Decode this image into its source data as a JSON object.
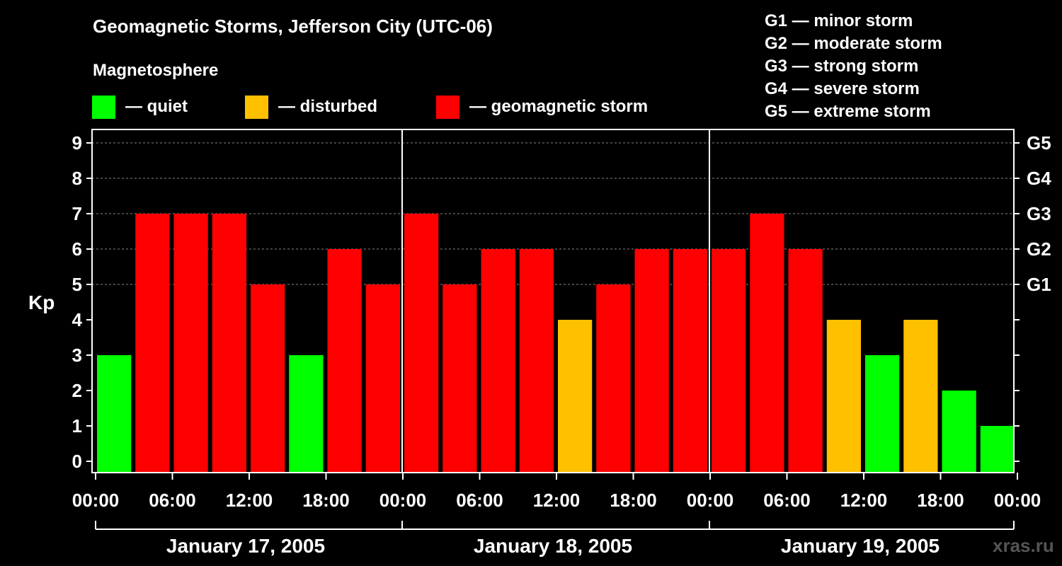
{
  "header": {
    "title": "Geomagnetic Storms, Jefferson City (UTC-06)",
    "magnetosphere_label": "Magnetosphere"
  },
  "legend": [
    {
      "label": "— quiet",
      "color": "#00ff00"
    },
    {
      "label": "— disturbed",
      "color": "#ffc000"
    },
    {
      "label": "— geomagnetic storm",
      "color": "#ff0000"
    }
  ],
  "storm_scale": [
    "G1 — minor storm",
    "G2 — moderate storm",
    "G3 — strong storm",
    "G4 — severe storm",
    "G5 — extreme storm"
  ],
  "watermark": "xras.ru",
  "chart_data": {
    "type": "bar",
    "title": "Geomagnetic Storms, Jefferson City (UTC-06)",
    "ylabel": "Kp",
    "ylim": [
      0,
      9
    ],
    "yticks": [
      "0",
      "1",
      "2",
      "3",
      "4",
      "5",
      "6",
      "7",
      "8",
      "9"
    ],
    "right_axis_labels": [
      {
        "kp": 5,
        "label": "G1"
      },
      {
        "kp": 6,
        "label": "G2"
      },
      {
        "kp": 7,
        "label": "G3"
      },
      {
        "kp": 8,
        "label": "G4"
      },
      {
        "kp": 9,
        "label": "G5"
      }
    ],
    "xtick_labels": [
      "00:00",
      "06:00",
      "12:00",
      "18:00",
      "00:00",
      "06:00",
      "12:00",
      "18:00",
      "00:00",
      "06:00",
      "12:00",
      "18:00",
      "00:00"
    ],
    "days": [
      "January 17, 2005",
      "January 18, 2005",
      "January 19, 2005"
    ],
    "bins_per_day": 8,
    "values": [
      3,
      7,
      7,
      7,
      5,
      3,
      6,
      5,
      7,
      5,
      6,
      6,
      4,
      5,
      6,
      6,
      6,
      7,
      6,
      4,
      3,
      4,
      2,
      1
    ],
    "color_thresholds": {
      "quiet_max": 3,
      "disturbed_max": 4
    },
    "colors": {
      "quiet": "#00ff00",
      "disturbed": "#ffc000",
      "storm": "#ff0000",
      "grid": "#888888",
      "axis": "#ffffff"
    }
  }
}
